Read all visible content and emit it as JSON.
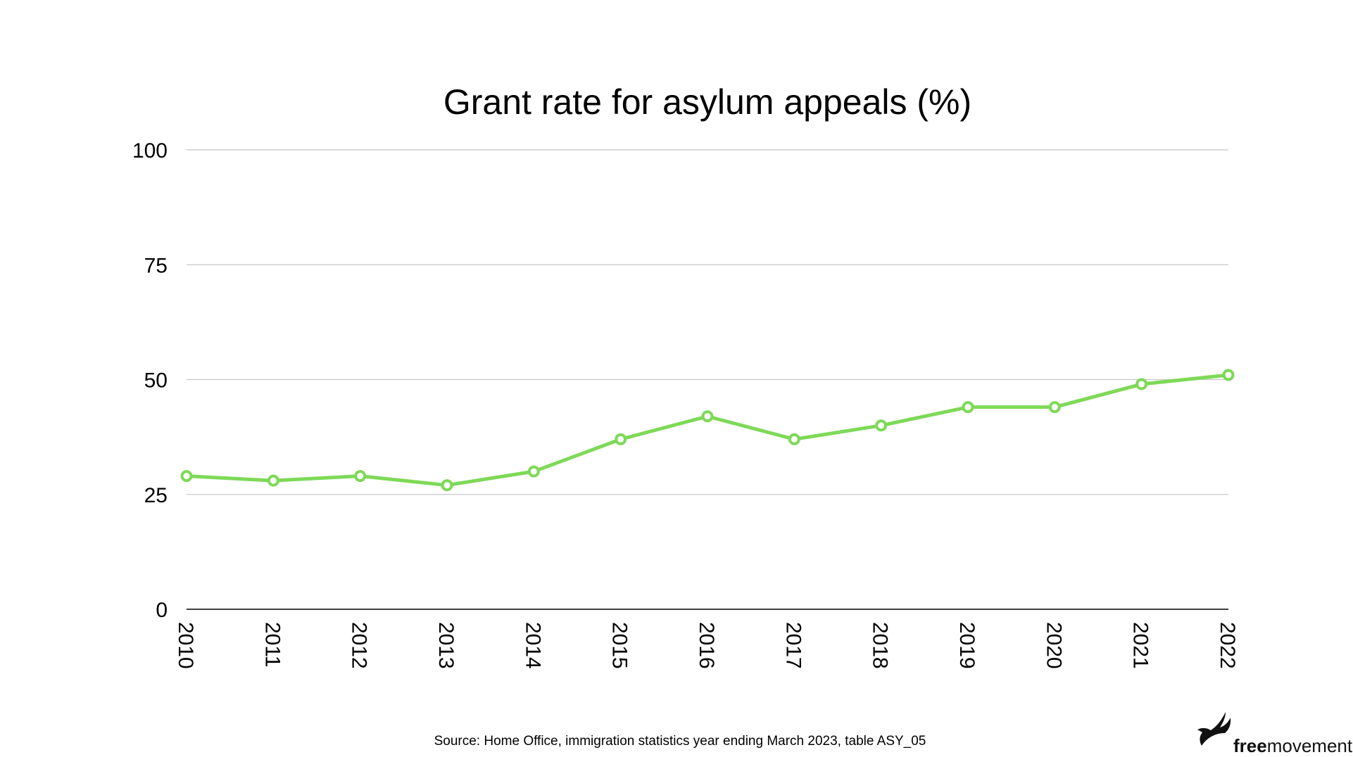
{
  "chart_data": {
    "type": "line",
    "title": "Grant rate for asylum appeals (%)",
    "xlabel": "",
    "ylabel": "",
    "x": [
      "2010",
      "2011",
      "2012",
      "2013",
      "2014",
      "2015",
      "2016",
      "2017",
      "2018",
      "2019",
      "2020",
      "2021",
      "2022"
    ],
    "series": [
      {
        "values": [
          29,
          28,
          29,
          27,
          30,
          37,
          42,
          37,
          40,
          44,
          44,
          49,
          51
        ],
        "color": "#7ED957"
      }
    ],
    "ylim": [
      0,
      100
    ],
    "yticks": [
      "0",
      "25",
      "50",
      "75",
      "100"
    ],
    "grid": true,
    "legend": "none",
    "markers": "hollow-circle"
  },
  "source": "Source: Home Office, immigration statistics year ending March 2023, table ASY_05",
  "brand": {
    "bold": "free",
    "regular": "movement",
    "icon": "bird-icon"
  },
  "colors": {
    "series": "#7ED957",
    "grid": "#c8c8c8",
    "axis": "#000000"
  }
}
